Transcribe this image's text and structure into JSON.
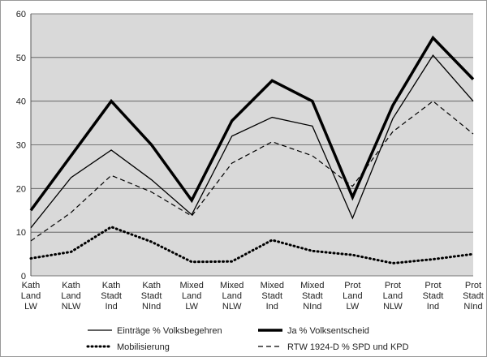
{
  "chart_data": {
    "type": "line",
    "categories": [
      "Kath\nLand\nLW",
      "Kath\nLand\nNLW",
      "Kath\nStadt\nInd",
      "Kath\nStadt\nNInd",
      "Mixed\nLand\nLW",
      "Mixed\nLand\nNLW",
      "Mixed\nStadt\nInd",
      "Mixed\nStadt\nNInd",
      "Prot\nLand\nLW",
      "Prot\nLand\nNLW",
      "Prot\nStadt\nInd",
      "Prot\nStadt\nNInd"
    ],
    "series": [
      {
        "name": "Einträge % Volksbegehren",
        "color": "#000000",
        "style": "thin",
        "values": [
          11,
          22.5,
          28.8,
          22,
          14,
          32,
          36.3,
          34.3,
          13.2,
          36,
          50.5,
          40
        ]
      },
      {
        "name": "Ja % Volksentscheid",
        "color": "#000000",
        "style": "thick",
        "values": [
          15,
          27.5,
          40,
          30,
          17.3,
          35.5,
          44.7,
          40,
          18,
          39,
          54.5,
          45
        ]
      },
      {
        "name": "Mobilisierung",
        "color": "#000000",
        "style": "dotted",
        "values": [
          4,
          5.5,
          11.2,
          7.8,
          3.2,
          3.3,
          8.2,
          5.7,
          4.8,
          2.9,
          3.8,
          5
        ]
      },
      {
        "name": "RTW 1924-D % SPD und KPD",
        "color": "#000000",
        "style": "dashed",
        "values": [
          8,
          14.5,
          23,
          19.2,
          13.7,
          25.8,
          30.7,
          27.5,
          20.5,
          33,
          40,
          32.5
        ]
      }
    ],
    "ylim": [
      0,
      60
    ],
    "yticks": [
      0,
      10,
      20,
      30,
      40,
      50,
      60
    ],
    "grid": true,
    "legend": "bottom"
  }
}
